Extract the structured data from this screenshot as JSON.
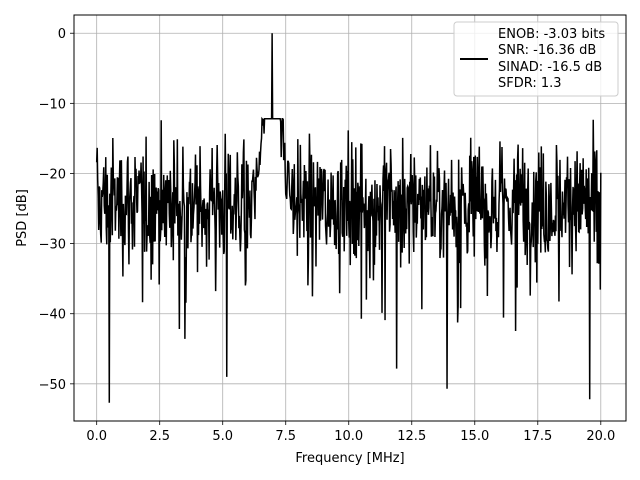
{
  "chart_data": {
    "type": "line",
    "title": "",
    "xlabel": "Frequency [MHz]",
    "ylabel": "PSD [dB]",
    "xlim": [
      -0.9,
      21.0
    ],
    "ylim": [
      -55.3,
      2.6
    ],
    "xticks": [
      0.0,
      2.5,
      5.0,
      7.5,
      10.0,
      12.5,
      15.0,
      17.5,
      20.0
    ],
    "xtick_labels": [
      "0.0",
      "2.5",
      "5.0",
      "7.5",
      "10.0",
      "12.5",
      "15.0",
      "17.5",
      "20.0"
    ],
    "yticks": [
      0,
      -10,
      -20,
      -30,
      -40,
      -50
    ],
    "ytick_labels": [
      "0",
      "−10",
      "−20",
      "−30",
      "−40",
      "−50"
    ],
    "grid": true,
    "legend_position": "top-right",
    "line_color": "#000000",
    "legend": {
      "label_lines": [
        "ENOB: -3.03 bits",
        "SNR: -16.36 dB",
        "SINAD: -16.5 dB",
        "SFDR: 1.3"
      ]
    },
    "series": [
      {
        "x_start": 0.0,
        "x_step": 0.02,
        "noise_mean": -24,
        "noise_spread": 6,
        "noise_floor_min": -52.7,
        "noise_ceiling_max": -12.2,
        "peak_x": 6.95,
        "peak_y": 0.0,
        "peak_width": 0.4,
        "notable_dips": [
          {
            "x": 0.5,
            "y": -52.7
          },
          {
            "x": 5.15,
            "y": -49.0
          },
          {
            "x": 13.9,
            "y": -50.7
          },
          {
            "x": 19.55,
            "y": -52.2
          }
        ]
      }
    ]
  }
}
